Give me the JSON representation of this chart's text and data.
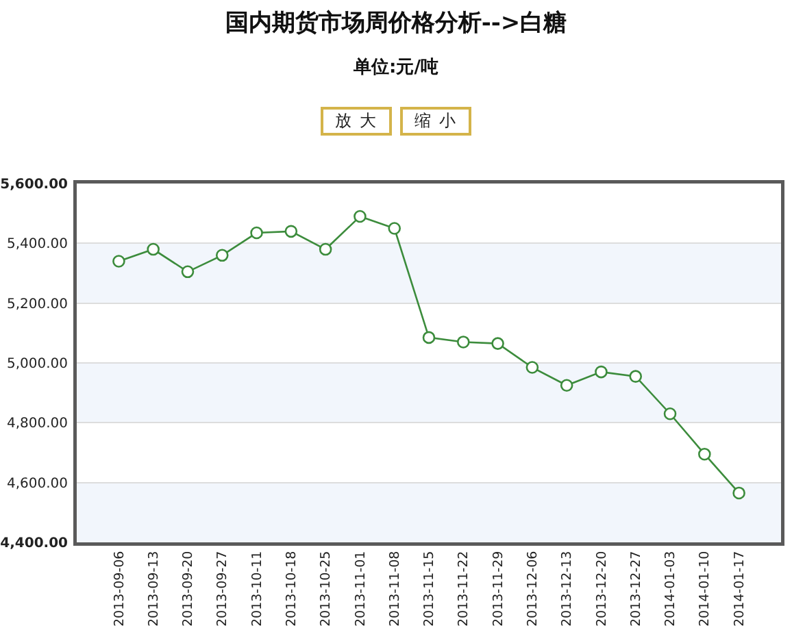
{
  "chart_data": {
    "type": "line",
    "title": "国内期货市场周价格分析-->白糖",
    "subtitle": "单位:元/吨",
    "annotations": [
      "放 大",
      "缩 小"
    ],
    "categories": [
      "2013-09-06",
      "2013-09-13",
      "2013-09-20",
      "2013-09-27",
      "2013-10-11",
      "2013-10-18",
      "2013-10-25",
      "2013-11-01",
      "2013-11-08",
      "2013-11-15",
      "2013-11-22",
      "2013-11-29",
      "2013-12-06",
      "2013-12-13",
      "2013-12-20",
      "2013-12-27",
      "2014-01-03",
      "2014-01-10",
      "2014-01-17"
    ],
    "series": [
      {
        "color": "#3c8c3c",
        "values": [
          5340,
          5380,
          5305,
          5360,
          5435,
          5440,
          5380,
          5490,
          5450,
          5085,
          5070,
          5065,
          4985,
          4925,
          4970,
          4955,
          4830,
          4695,
          4565
        ]
      }
    ],
    "ylim": [
      4400,
      5600
    ],
    "yticks": [
      {
        "value": 4400,
        "label": "4,400.00"
      },
      {
        "value": 4600,
        "label": "4,600.00"
      },
      {
        "value": 4800,
        "label": "4,800.00"
      },
      {
        "value": 5000,
        "label": "5,000.00"
      },
      {
        "value": 5200,
        "label": "5,200.00"
      },
      {
        "value": 5400,
        "label": "5,400.00"
      },
      {
        "value": 5600,
        "label": "5,600.00"
      }
    ],
    "grid": "y",
    "marker": "circle",
    "line_style": "solid"
  }
}
